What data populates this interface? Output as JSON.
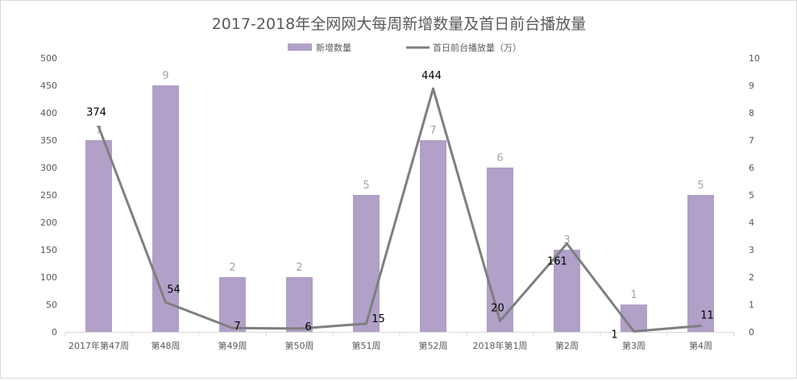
{
  "chart_data": {
    "type": "bar+line",
    "title": "2017-2018年全网网大每周新增数量及首日前台播放量",
    "categories": [
      "2017年第47周",
      "第48周",
      "第49周",
      "第50周",
      "第51周",
      "第52周",
      "2018年第1周",
      "第2周",
      "第3周",
      "第4周"
    ],
    "series": [
      {
        "name": "新增数量",
        "type": "bar",
        "axis": "right",
        "values": [
          7,
          9,
          2,
          2,
          5,
          7,
          6,
          3,
          1,
          5
        ],
        "color": "#b1a0c7"
      },
      {
        "name": "首日前台播放量（万）",
        "type": "line",
        "axis": "left",
        "values": [
          374,
          54,
          7,
          6,
          15,
          444,
          20,
          161,
          1,
          11
        ],
        "color": "#7f7f7f"
      }
    ],
    "left_axis": {
      "ylim": [
        0,
        500
      ],
      "ticks": [
        "0",
        "50",
        "100",
        "150",
        "200",
        "250",
        "300",
        "350",
        "400",
        "450",
        "500"
      ]
    },
    "right_axis": {
      "ylim": [
        0,
        10
      ],
      "ticks": [
        "0",
        "1",
        "2",
        "3",
        "4",
        "5",
        "6",
        "7",
        "8",
        "9",
        "10"
      ]
    },
    "legend": "top-center",
    "grid": false
  }
}
